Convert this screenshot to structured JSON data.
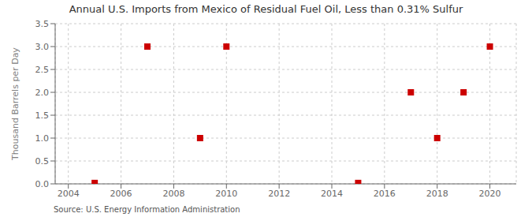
{
  "chart_data": {
    "type": "scatter",
    "title": "Annual U.S. Imports from Mexico of Residual Fuel Oil, Less than 0.31% Sulfur",
    "y_label": "Thousand Barrels per Day",
    "annotations": [
      "Source: U.S. Energy Information Administration"
    ],
    "x": [
      2005,
      2007,
      2009,
      2010,
      2015,
      2017,
      2018,
      2019,
      2020
    ],
    "values": [
      0.02,
      3.0,
      1.0,
      3.0,
      0.02,
      2.0,
      1.0,
      2.0,
      3.0
    ],
    "color": "#cc0000",
    "marker": "square",
    "xlim": [
      2003.5,
      2021.0
    ],
    "ylim": [
      0.0,
      3.5
    ],
    "xticks": [
      2004,
      2006,
      2008,
      2010,
      2012,
      2014,
      2016,
      2018,
      2020
    ],
    "yticks": [
      {
        "value": 0.0,
        "label": "0.0"
      },
      0.5,
      {
        "value": 1.0,
        "label": "1.0"
      },
      1.5,
      {
        "value": 2.0,
        "label": "2.0"
      },
      2.5,
      {
        "value": 3.0,
        "label": "3.0"
      },
      3.5
    ],
    "grid": true
  }
}
